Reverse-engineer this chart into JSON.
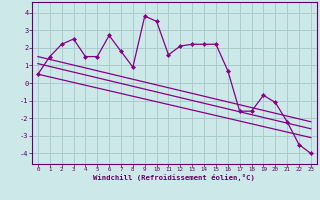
{
  "xlabel": "Windchill (Refroidissement éolien,°C)",
  "bg_color": "#cce8e8",
  "grid_color": "#aacccc",
  "line_color": "#880088",
  "x_values": [
    0,
    1,
    2,
    3,
    4,
    5,
    6,
    7,
    8,
    9,
    10,
    11,
    12,
    13,
    14,
    15,
    16,
    17,
    18,
    19,
    20,
    21,
    22,
    23
  ],
  "y_main": [
    0.5,
    1.5,
    2.2,
    2.5,
    1.5,
    1.5,
    2.7,
    1.8,
    0.9,
    3.8,
    3.5,
    1.6,
    2.1,
    2.2,
    2.2,
    2.2,
    0.7,
    -1.6,
    -1.6,
    -0.7,
    -1.1,
    -2.2,
    -3.5,
    -4.0
  ],
  "trend_lines": [
    {
      "x0": 0,
      "y0": 0.5,
      "x1": 23,
      "y1": -3.1
    },
    {
      "x0": 0,
      "y0": 1.1,
      "x1": 23,
      "y1": -2.6
    },
    {
      "x0": 0,
      "y0": 1.5,
      "x1": 23,
      "y1": -2.2
    }
  ],
  "ylim": [
    -4.6,
    4.6
  ],
  "xlim": [
    -0.5,
    23.5
  ],
  "yticks": [
    -4,
    -3,
    -2,
    -1,
    0,
    1,
    2,
    3,
    4
  ],
  "xticks": [
    0,
    1,
    2,
    3,
    4,
    5,
    6,
    7,
    8,
    9,
    10,
    11,
    12,
    13,
    14,
    15,
    16,
    17,
    18,
    19,
    20,
    21,
    22,
    23
  ],
  "text_color": "#660066"
}
